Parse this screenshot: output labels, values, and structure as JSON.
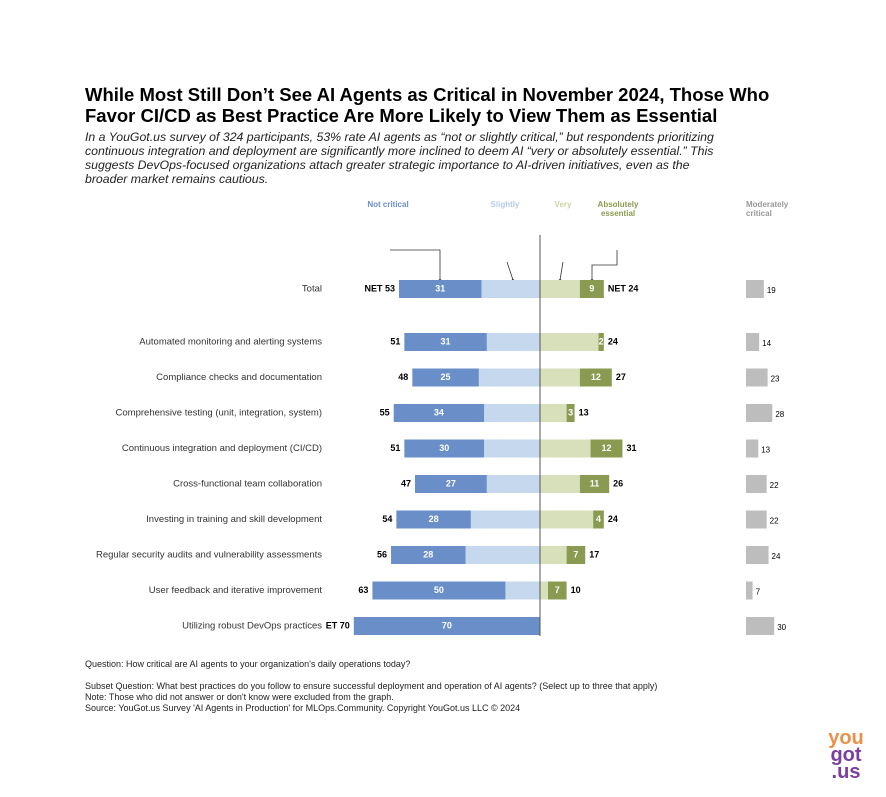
{
  "chart_data": {
    "type": "diverging_bar",
    "title": "While Most Still Don’t See AI Agents as Critical in November 2024, Those Who Favor CI/CD as Best Practice Are More Likely to View Them as Essential",
    "subtitle": "In a YouGot.us survey of 324 participants, 53% rate AI agents as “not or slightly critical,” but respondents prioritizing continuous integration and deployment are significantly more inclined to deem AI “very or absolutely essential.” This suggests DevOps-focused organizations attach greater strategic importance to AI-driven initiatives, even as the broader market remains cautious.",
    "categories": [
      "Total",
      "Automated monitoring and alerting systems",
      "Compliance checks and documentation",
      "Comprehensive testing (unit, integration, system)",
      "Continuous integration and deployment (CI/CD)",
      "Cross-functional team collaboration",
      "Investing in training and skill development",
      "Regular security audits and vulnerability assessments",
      "User feedback and iterative improvement",
      "Utilizing robust DevOps practices"
    ],
    "series": [
      {
        "name": "Not critical",
        "color": "#6a8fc8",
        "values": [
          31,
          31,
          25,
          34,
          30,
          27,
          28,
          28,
          50,
          70
        ]
      },
      {
        "name": "Slightly",
        "color": "#c6d8ee",
        "values": [
          22,
          20,
          23,
          21,
          21,
          20,
          26,
          28,
          13,
          0
        ]
      },
      {
        "name": "Very",
        "color": "#d8dfbb",
        "values": [
          15,
          22,
          15,
          10,
          19,
          15,
          20,
          10,
          3,
          null
        ]
      },
      {
        "name": "Absolutely essential",
        "color": "#8a9a50",
        "values": [
          9,
          2,
          12,
          3,
          12,
          11,
          4,
          7,
          7,
          null
        ]
      }
    ],
    "net_left": {
      "values": [
        53,
        51,
        48,
        55,
        51,
        47,
        54,
        56,
        63,
        70
      ],
      "value_labels": [
        "NET 53",
        "51",
        "48",
        "55",
        "51",
        "47",
        "54",
        "56",
        "63",
        "ET 70"
      ]
    },
    "net_right": {
      "values": [
        24,
        24,
        27,
        13,
        31,
        26,
        24,
        17,
        10,
        null
      ],
      "value_labels": [
        "NET 24",
        "24",
        "27",
        "13",
        "31",
        "26",
        "24",
        "17",
        "10",
        null
      ]
    },
    "moderately_critical": {
      "name": "Moderately critical",
      "color": "#bdbdbd",
      "values": [
        19,
        14,
        23,
        28,
        13,
        22,
        22,
        24,
        7,
        30
      ]
    },
    "notes": [
      "Question: How critical are AI agents to your organization's daily operations today?",
      "Subset Question: What best practices do you follow to ensure successful deployment and operation of AI agents? (Select up to three that apply)",
      "Note: Those who did not answer or don't know were excluded from the graph.",
      "Source: YouGot.us Survey 'AI Agents in Production' for MLOps.Community. Copyright YouGot.us LLC © 2024"
    ],
    "logo": [
      "you",
      "got",
      ".us"
    ]
  }
}
